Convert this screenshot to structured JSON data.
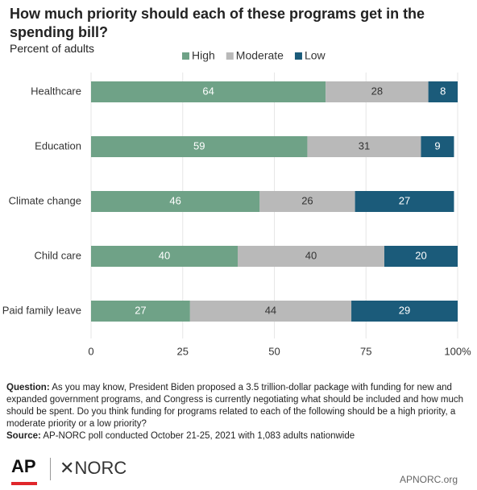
{
  "chart_data": {
    "type": "stacked-bar-horizontal",
    "title": "How much priority should each of these programs get in the spending bill?",
    "subtitle": "Percent of adults",
    "categories": [
      "Healthcare",
      "Education",
      "Climate change",
      "Child care",
      "Paid family leave"
    ],
    "series": [
      {
        "name": "High",
        "color": "#6fa287",
        "values": [
          64,
          59,
          46,
          40,
          27
        ]
      },
      {
        "name": "Moderate",
        "color": "#b9b9b9",
        "values": [
          28,
          31,
          26,
          40,
          44
        ]
      },
      {
        "name": "Low",
        "color": "#1b5b7a",
        "values": [
          8,
          9,
          27,
          20,
          29
        ]
      }
    ],
    "xlim": [
      0,
      100
    ],
    "xticks": [
      0,
      25,
      50,
      75,
      {
        "value": 100,
        "label": "100%"
      }
    ],
    "grid": true,
    "legend": "top"
  },
  "footer": {
    "question_label": "Question:",
    "question": "As you may know, President Biden proposed a 3.5 trillion-dollar package with funding for new and expanded government programs, and Congress is currently negotiating what should be included and how much should be spent. Do you think funding for programs related to each of the following should be a high priority, a moderate priority or a low priority?",
    "source_label": "Source:",
    "source": "AP-NORC poll conducted October 21-25, 2021 with 1,083 adults nationwide",
    "logo_ap": "AP",
    "logo_norc": "NORC",
    "site": "APNORC.org"
  }
}
